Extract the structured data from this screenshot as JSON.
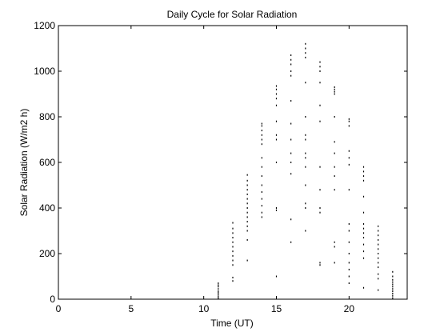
{
  "chart_data": {
    "type": "scatter",
    "title": "Daily Cycle for Solar Radiation",
    "xlabel": "Time (UT)",
    "ylabel": "Solar Radiation (W/m2 h)",
    "xlim": [
      0,
      24
    ],
    "ylim": [
      0,
      1200
    ],
    "xticks": [
      0,
      5,
      10,
      15,
      20
    ],
    "yticks": [
      0,
      200,
      400,
      600,
      800,
      1000,
      1200
    ],
    "grid": false,
    "marker_color": "#000000",
    "series": [
      {
        "points": [
          [
            11,
            5
          ],
          [
            11,
            12
          ],
          [
            11,
            20
          ],
          [
            11,
            28
          ],
          [
            11,
            35
          ],
          [
            11,
            45
          ],
          [
            11,
            55
          ],
          [
            11,
            62
          ],
          [
            11,
            70
          ],
          [
            12,
            80
          ],
          [
            12,
            95
          ],
          [
            12,
            150
          ],
          [
            12,
            170
          ],
          [
            12,
            190
          ],
          [
            12,
            210
          ],
          [
            12,
            230
          ],
          [
            12,
            250
          ],
          [
            12,
            270
          ],
          [
            12,
            290
          ],
          [
            12,
            310
          ],
          [
            12,
            335
          ],
          [
            13,
            170
          ],
          [
            13,
            260
          ],
          [
            13,
            300
          ],
          [
            13,
            320
          ],
          [
            13,
            340
          ],
          [
            13,
            360
          ],
          [
            13,
            380
          ],
          [
            13,
            400
          ],
          [
            13,
            420
          ],
          [
            13,
            440
          ],
          [
            13,
            460
          ],
          [
            13,
            480
          ],
          [
            13,
            500
          ],
          [
            13,
            520
          ],
          [
            13,
            545
          ],
          [
            14,
            360
          ],
          [
            14,
            380
          ],
          [
            14,
            410
          ],
          [
            14,
            440
          ],
          [
            14,
            470
          ],
          [
            14,
            500
          ],
          [
            14,
            540
          ],
          [
            14,
            580
          ],
          [
            14,
            620
          ],
          [
            14,
            680
          ],
          [
            14,
            700
          ],
          [
            14,
            720
          ],
          [
            14,
            740
          ],
          [
            14,
            760
          ],
          [
            14,
            770
          ],
          [
            15,
            100
          ],
          [
            15,
            390
          ],
          [
            15,
            400
          ],
          [
            15,
            600
          ],
          [
            15,
            700
          ],
          [
            15,
            720
          ],
          [
            15,
            780
          ],
          [
            15,
            850
          ],
          [
            15,
            880
          ],
          [
            15,
            900
          ],
          [
            15,
            920
          ],
          [
            15,
            935
          ],
          [
            16,
            250
          ],
          [
            16,
            350
          ],
          [
            16,
            550
          ],
          [
            16,
            600
          ],
          [
            16,
            640
          ],
          [
            16,
            700
          ],
          [
            16,
            770
          ],
          [
            16,
            870
          ],
          [
            16,
            980
          ],
          [
            16,
            1000
          ],
          [
            16,
            1030
          ],
          [
            16,
            1050
          ],
          [
            16,
            1070
          ],
          [
            17,
            300
          ],
          [
            17,
            400
          ],
          [
            17,
            420
          ],
          [
            17,
            500
          ],
          [
            17,
            580
          ],
          [
            17,
            620
          ],
          [
            17,
            640
          ],
          [
            17,
            700
          ],
          [
            17,
            720
          ],
          [
            17,
            800
          ],
          [
            17,
            950
          ],
          [
            17,
            1060
          ],
          [
            17,
            1080
          ],
          [
            17,
            1100
          ],
          [
            17,
            1120
          ],
          [
            18,
            150
          ],
          [
            18,
            160
          ],
          [
            18,
            380
          ],
          [
            18,
            400
          ],
          [
            18,
            480
          ],
          [
            18,
            580
          ],
          [
            18,
            780
          ],
          [
            18,
            850
          ],
          [
            18,
            950
          ],
          [
            18,
            1000
          ],
          [
            18,
            1020
          ],
          [
            18,
            1040
          ],
          [
            19,
            160
          ],
          [
            19,
            230
          ],
          [
            19,
            250
          ],
          [
            19,
            480
          ],
          [
            19,
            540
          ],
          [
            19,
            580
          ],
          [
            19,
            640
          ],
          [
            19,
            690
          ],
          [
            19,
            800
          ],
          [
            19,
            900
          ],
          [
            19,
            910
          ],
          [
            19,
            920
          ],
          [
            19,
            930
          ],
          [
            20,
            70
          ],
          [
            20,
            100
          ],
          [
            20,
            130
          ],
          [
            20,
            160
          ],
          [
            20,
            200
          ],
          [
            20,
            250
          ],
          [
            20,
            300
          ],
          [
            20,
            330
          ],
          [
            20,
            480
          ],
          [
            20,
            590
          ],
          [
            20,
            620
          ],
          [
            20,
            650
          ],
          [
            20,
            760
          ],
          [
            20,
            780
          ],
          [
            20,
            790
          ],
          [
            21,
            50
          ],
          [
            21,
            180
          ],
          [
            21,
            210
          ],
          [
            21,
            240
          ],
          [
            21,
            270
          ],
          [
            21,
            290
          ],
          [
            21,
            310
          ],
          [
            21,
            330
          ],
          [
            21,
            380
          ],
          [
            21,
            450
          ],
          [
            21,
            520
          ],
          [
            21,
            540
          ],
          [
            21,
            560
          ],
          [
            21,
            580
          ],
          [
            22,
            40
          ],
          [
            22,
            90
          ],
          [
            22,
            110
          ],
          [
            22,
            140
          ],
          [
            22,
            160
          ],
          [
            22,
            180
          ],
          [
            22,
            200
          ],
          [
            22,
            220
          ],
          [
            22,
            240
          ],
          [
            22,
            260
          ],
          [
            22,
            280
          ],
          [
            22,
            300
          ],
          [
            22,
            320
          ],
          [
            23,
            5
          ],
          [
            23,
            15
          ],
          [
            23,
            25
          ],
          [
            23,
            35
          ],
          [
            23,
            45
          ],
          [
            23,
            55
          ],
          [
            23,
            65
          ],
          [
            23,
            75
          ],
          [
            23,
            85
          ],
          [
            23,
            100
          ],
          [
            23,
            120
          ]
        ]
      }
    ]
  }
}
